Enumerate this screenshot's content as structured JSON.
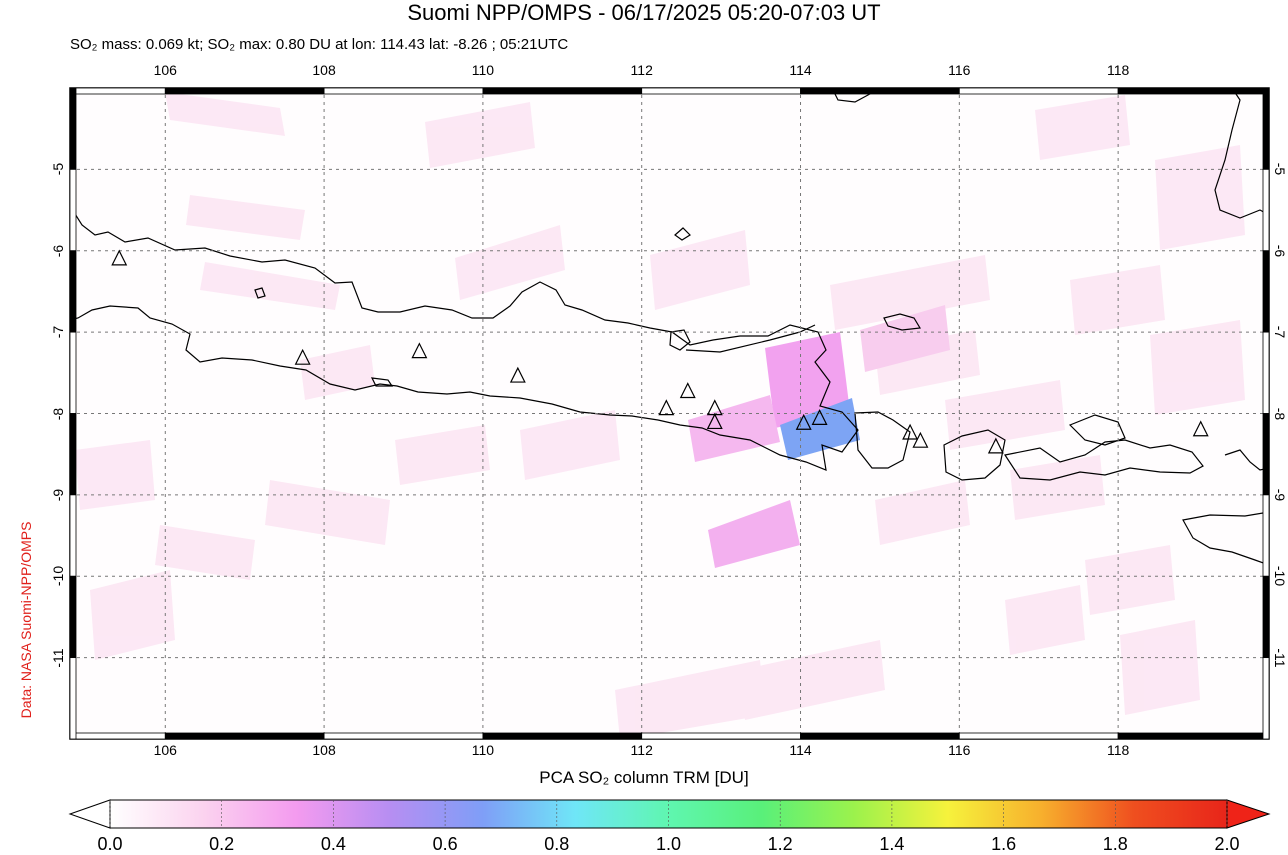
{
  "header": {
    "title": "Suomi NPP/OMPS - 06/17/2025 05:20-07:03 UT",
    "subtitle": "SO₂ mass: 0.069 kt; SO₂ max: 0.80 DU at lon: 114.43 lat: -8.26 ; 05:21UTC"
  },
  "credit": "Data: NASA Suomi-NPP/OMPS",
  "map": {
    "lon_range": [
      104.8,
      119.9
    ],
    "lat_range": [
      -12.0,
      -4.0
    ],
    "lon_ticks": [
      "106",
      "108",
      "110",
      "112",
      "114",
      "116",
      "118"
    ],
    "lat_ticks": [
      "-5",
      "-6",
      "-7",
      "-8",
      "-9",
      "-10",
      "-11"
    ],
    "grid": "dashed",
    "volcano_marker": "triangle-icon",
    "volcanoes": [
      {
        "lon": 105.42,
        "lat": -6.1
      },
      {
        "lon": 107.73,
        "lat": -7.32
      },
      {
        "lon": 109.2,
        "lat": -7.24
      },
      {
        "lon": 110.44,
        "lat": -7.54
      },
      {
        "lon": 112.31,
        "lat": -7.94
      },
      {
        "lon": 112.58,
        "lat": -7.73
      },
      {
        "lon": 112.92,
        "lat": -7.94
      },
      {
        "lon": 112.92,
        "lat": -8.11
      },
      {
        "lon": 114.04,
        "lat": -8.12
      },
      {
        "lon": 114.24,
        "lat": -8.06
      },
      {
        "lon": 115.38,
        "lat": -8.24
      },
      {
        "lon": 115.51,
        "lat": -8.34
      },
      {
        "lon": 116.46,
        "lat": -8.41
      },
      {
        "lon": 119.04,
        "lat": -8.2
      }
    ]
  },
  "colorbar": {
    "label": "PCA SO₂ column TRM [DU]",
    "ticks": [
      "0.0",
      "0.2",
      "0.4",
      "0.6",
      "0.8",
      "1.0",
      "1.2",
      "1.4",
      "1.6",
      "1.8",
      "2.0"
    ],
    "colors": [
      "#ffffff",
      "#fbd3ef",
      "#f49bef",
      "#b78ef2",
      "#7f9ef7",
      "#6fe6f7",
      "#5ff6b0",
      "#59f07a",
      "#9cf24c",
      "#f6f23c",
      "#f7b02d",
      "#ef4f1f",
      "#e8251a"
    ],
    "low_arrow": "#ffffff",
    "high_arrow": "#ef2318"
  }
}
